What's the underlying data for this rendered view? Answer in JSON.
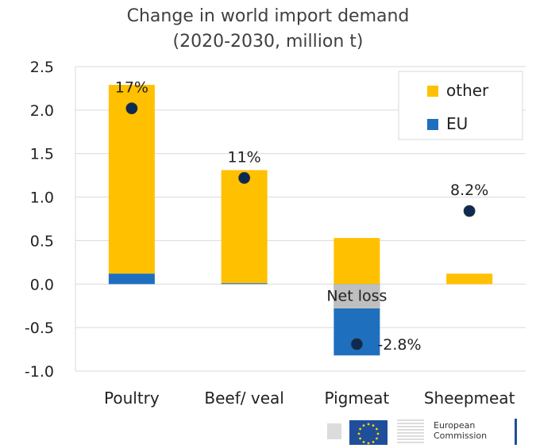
{
  "chart_data": {
    "type": "bar",
    "title": "Change in world import demand",
    "subtitle": "(2020-2030, million t)",
    "xlabel": "",
    "ylabel": "",
    "ylim": [
      -1.0,
      2.5
    ],
    "yticks": [
      "2.5",
      "2.0",
      "1.5",
      "1.0",
      "0.5",
      "0.0",
      "-0.5",
      "-1.0"
    ],
    "ytick_values": [
      2.5,
      2.0,
      1.5,
      1.0,
      0.5,
      0.0,
      -0.5,
      -1.0
    ],
    "grid": true,
    "legend_position": "top-right",
    "categories": [
      "Poultry",
      "Beef/ veal",
      "Pigmeat",
      "Sheepmeat"
    ],
    "series": [
      {
        "name": "other",
        "color": "#FFC000",
        "values": [
          2.17,
          1.3,
          0.53,
          0.12
        ]
      },
      {
        "name": "EU",
        "color": "#1F6FBF",
        "values": [
          0.12,
          0.01,
          -0.82,
          0.0
        ]
      }
    ],
    "net_loss": {
      "label": "Net loss",
      "category": "Pigmeat",
      "from": 0.0,
      "to": -0.28,
      "color": "#BFBFBF"
    },
    "markers": {
      "color": "#0D2B52",
      "points": [
        {
          "category": "Poultry",
          "value": 2.02,
          "label": "17%"
        },
        {
          "category": "Beef/ veal",
          "value": 1.22,
          "label": "11%"
        },
        {
          "category": "Pigmeat",
          "value": -0.69,
          "label": "-2.8%"
        },
        {
          "category": "Sheepmeat",
          "value": 0.84,
          "label": "8.2%"
        }
      ]
    }
  },
  "logo": {
    "line1": "European",
    "line2": "Commission"
  }
}
